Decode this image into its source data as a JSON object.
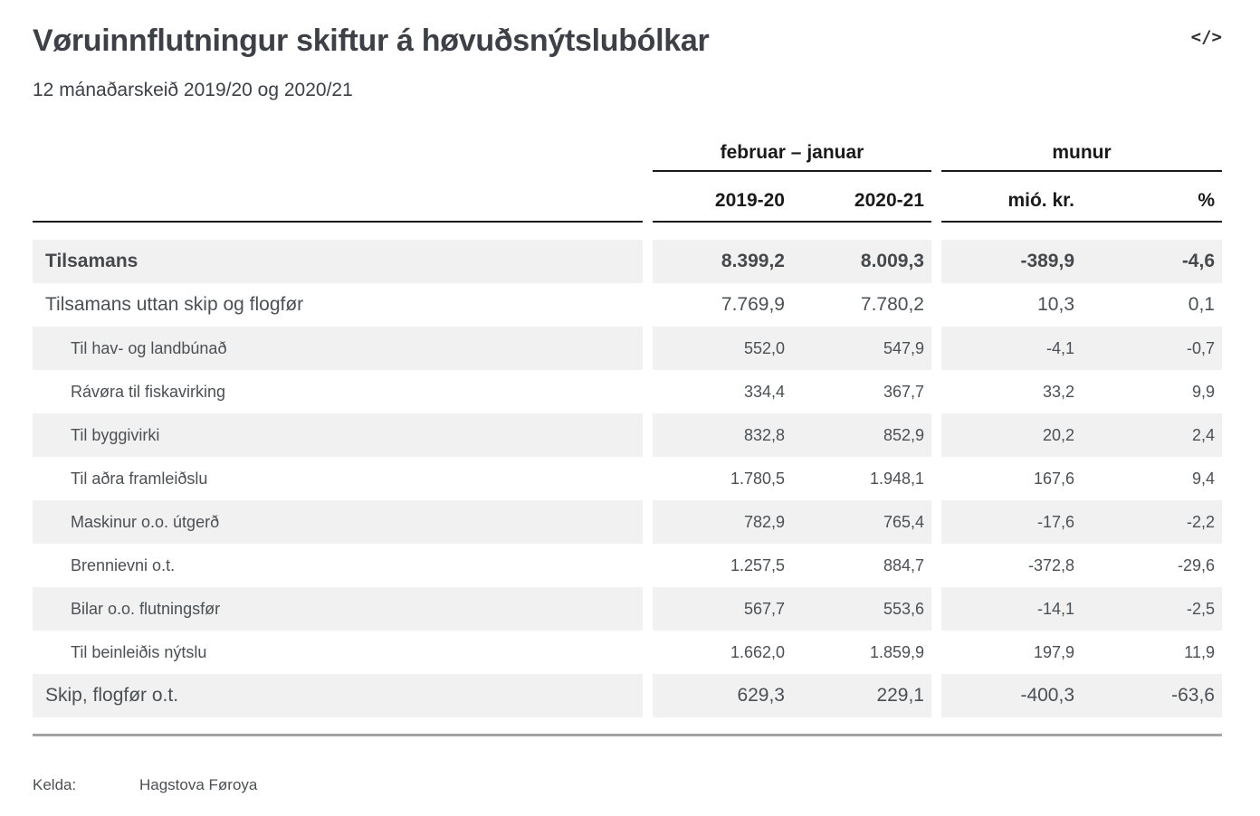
{
  "header": {
    "title": "Vøruinnflutningur skiftur á høvuðsnýtslubólkar",
    "subtitle": "12 mánaðarskeið 2019/20 og 2020/21",
    "embed_icon": "</>"
  },
  "table": {
    "column_groups": [
      {
        "label": "februar – januar"
      },
      {
        "label": "munur"
      }
    ],
    "columns": [
      "2019-20",
      "2020-21",
      "mió. kr.",
      "%"
    ],
    "rows": [
      {
        "label": "Tilsamans",
        "level": 0,
        "bold": true,
        "values": [
          "8.399,2",
          "8.009,3",
          "-389,9",
          "-4,6"
        ]
      },
      {
        "label": "Tilsamans uttan skip og flogfør",
        "level": 0,
        "bold": false,
        "values": [
          "7.769,9",
          "7.780,2",
          "10,3",
          "0,1"
        ]
      },
      {
        "label": "Til hav- og landbúnað",
        "level": 1,
        "bold": false,
        "values": [
          "552,0",
          "547,9",
          "-4,1",
          "-0,7"
        ]
      },
      {
        "label": "Rávøra til fiskavirking",
        "level": 1,
        "bold": false,
        "values": [
          "334,4",
          "367,7",
          "33,2",
          "9,9"
        ]
      },
      {
        "label": "Til byggivirki",
        "level": 1,
        "bold": false,
        "values": [
          "832,8",
          "852,9",
          "20,2",
          "2,4"
        ]
      },
      {
        "label": "Til aðra framleiðslu",
        "level": 1,
        "bold": false,
        "values": [
          "1.780,5",
          "1.948,1",
          "167,6",
          "9,4"
        ]
      },
      {
        "label": "Maskinur o.o. útgerð",
        "level": 1,
        "bold": false,
        "values": [
          "782,9",
          "765,4",
          "-17,6",
          "-2,2"
        ]
      },
      {
        "label": "Brennievni o.t.",
        "level": 1,
        "bold": false,
        "values": [
          "1.257,5",
          "884,7",
          "-372,8",
          "-29,6"
        ]
      },
      {
        "label": "Bilar o.o. flutningsfør",
        "level": 1,
        "bold": false,
        "values": [
          "567,7",
          "553,6",
          "-14,1",
          "-2,5"
        ]
      },
      {
        "label": "Til beinleiðis nýtslu",
        "level": 1,
        "bold": false,
        "values": [
          "1.662,0",
          "1.859,9",
          "197,9",
          "11,9"
        ]
      },
      {
        "label": "Skip, flogfør o.t.",
        "level": 0,
        "bold": false,
        "values": [
          "629,3",
          "229,1",
          "-400,3",
          "-63,6"
        ]
      }
    ]
  },
  "footer": {
    "source_label": "Kelda:",
    "source_value": "Hagstova Føroya"
  },
  "colors": {
    "zebra_stripe": "#f1f1f1",
    "header_rule": "#1a1a1a",
    "bottom_rule": "#a3a3a3",
    "text": "#4c5054",
    "title_text": "#3d4147"
  },
  "chart_data": {
    "type": "table",
    "title": "Vøruinnflutningur skiftur á høvuðsnýtslubólkar",
    "subtitle": "12 mánaðarskeið 2019/20 og 2020/21",
    "column_groups": [
      {
        "label": "februar – januar",
        "columns": [
          "2019-20",
          "2020-21"
        ]
      },
      {
        "label": "munur",
        "columns": [
          "mió. kr.",
          "%"
        ]
      }
    ],
    "rows": [
      {
        "label": "Tilsamans",
        "values": [
          8399.2,
          8009.3,
          -389.9,
          -4.6
        ]
      },
      {
        "label": "Tilsamans uttan skip og flogfør",
        "values": [
          7769.9,
          7780.2,
          10.3,
          0.1
        ]
      },
      {
        "label": "Til hav- og landbúnað",
        "values": [
          552.0,
          547.9,
          -4.1,
          -0.7
        ]
      },
      {
        "label": "Rávøra til fiskavirking",
        "values": [
          334.4,
          367.7,
          33.2,
          9.9
        ]
      },
      {
        "label": "Til byggivirki",
        "values": [
          832.8,
          852.9,
          20.2,
          2.4
        ]
      },
      {
        "label": "Til aðra framleiðslu",
        "values": [
          1780.5,
          1948.1,
          167.6,
          9.4
        ]
      },
      {
        "label": "Maskinur o.o. útgerð",
        "values": [
          782.9,
          765.4,
          -17.6,
          -2.2
        ]
      },
      {
        "label": "Brennievni o.t.",
        "values": [
          1257.5,
          884.7,
          -372.8,
          -29.6
        ]
      },
      {
        "label": "Bilar o.o. flutningsfør",
        "values": [
          567.7,
          553.6,
          -14.1,
          -2.5
        ]
      },
      {
        "label": "Til beinleiðis nýtslu",
        "values": [
          1662.0,
          1859.9,
          197.9,
          11.9
        ]
      },
      {
        "label": "Skip, flogfør o.t.",
        "values": [
          629.3,
          229.1,
          -400.3,
          -63.6
        ]
      }
    ],
    "source": "Hagstova Føroya"
  }
}
